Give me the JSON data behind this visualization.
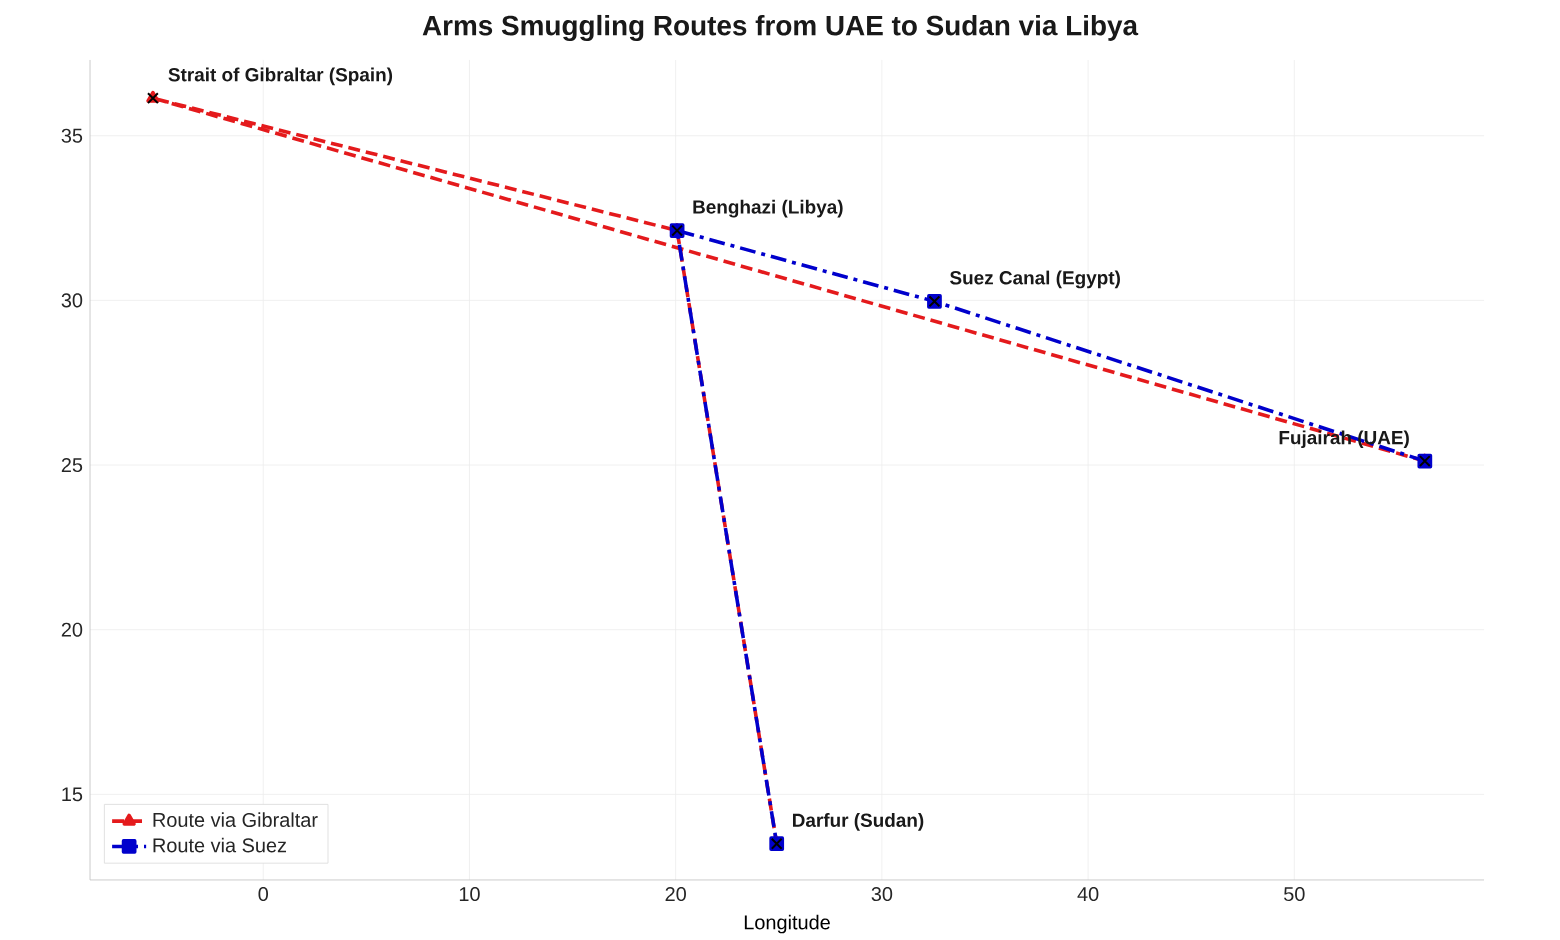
{
  "chart_data": {
    "type": "line",
    "title": "Arms Smuggling Routes from UAE to Sudan via Libya",
    "xlabel": "Longitude",
    "xlim": [
      -8.4,
      59.2
    ],
    "ylim": [
      12.4,
      37.3
    ],
    "xticks": [
      0,
      10,
      20,
      30,
      40,
      50
    ],
    "yticks": [
      15,
      20,
      25,
      30,
      35
    ],
    "grid": true,
    "legend": "bottom left",
    "series": [
      {
        "name": "Route via Gibraltar",
        "color": "#e41a1c",
        "marker": "triangle",
        "line_style": "dashed",
        "x": [
          56.33,
          -5.35,
          20.07,
          24.9
        ],
        "values": [
          25.12,
          36.14,
          32.12,
          13.5
        ]
      },
      {
        "name": "Route via Suez",
        "color": "#0000cc",
        "marker": "square",
        "line_style": "dashdot",
        "x": [
          56.33,
          32.55,
          20.07,
          24.9
        ],
        "values": [
          25.12,
          29.97,
          32.12,
          13.5
        ]
      },
      {
        "type": "scatter",
        "color": "#000000",
        "marker": "cross",
        "x": [
          -5.35,
          20.07,
          32.55,
          56.33,
          24.9
        ],
        "values": [
          36.14,
          32.12,
          29.97,
          25.12,
          13.5
        ]
      }
    ],
    "annotations": [
      {
        "text": "Strait of Gibraltar (Spain)",
        "x": -5.35,
        "y": 36.14
      },
      {
        "text": "Benghazi (Libya)",
        "x": 20.07,
        "y": 32.12
      },
      {
        "text": "Suez Canal (Egypt)",
        "x": 32.55,
        "y": 29.97
      },
      {
        "text": "Fujairah (UAE)",
        "x": 56.33,
        "y": 25.12
      },
      {
        "text": "Darfur (Sudan)",
        "x": 24.9,
        "y": 13.5
      }
    ]
  }
}
